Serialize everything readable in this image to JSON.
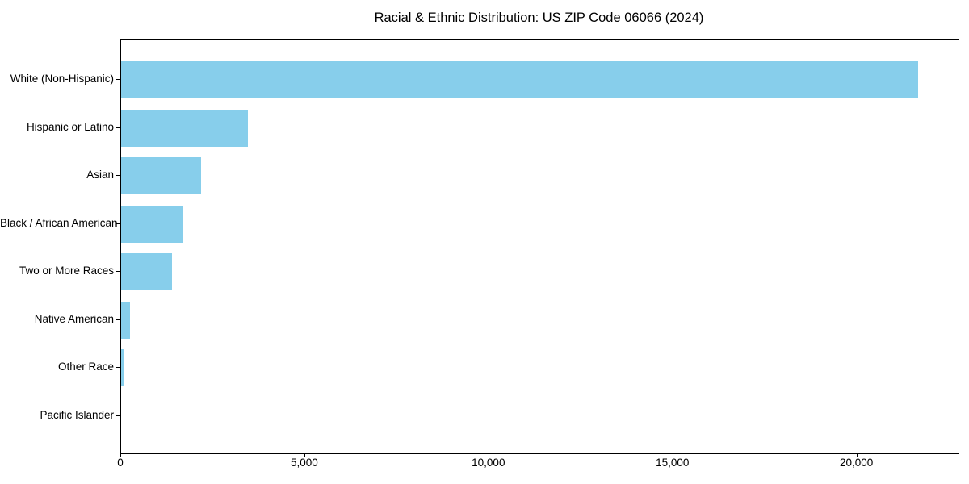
{
  "chart_data": {
    "type": "bar",
    "orientation": "horizontal",
    "title": "Racial & Ethnic Distribution: US ZIP Code 06066 (2024)",
    "categories": [
      "White (Non-Hispanic)",
      "Hispanic or Latino",
      "Asian",
      "Black / African American",
      "Two or More Races",
      "Native American",
      "Other Race",
      "Pacific Islander"
    ],
    "values": [
      21650,
      3440,
      2170,
      1690,
      1380,
      240,
      70,
      0
    ],
    "xlabel": "",
    "ylabel": "",
    "xticks": [
      0,
      5000,
      10000,
      15000,
      20000
    ],
    "xtick_labels": [
      "0",
      "5,000",
      "10,000",
      "15,000",
      "20,000"
    ],
    "xlim": [
      0,
      22750
    ],
    "grid": false,
    "legend": null,
    "bar_color": "#87CEEB",
    "axis_color": "#000000",
    "background_color": "#FFFFFF"
  }
}
